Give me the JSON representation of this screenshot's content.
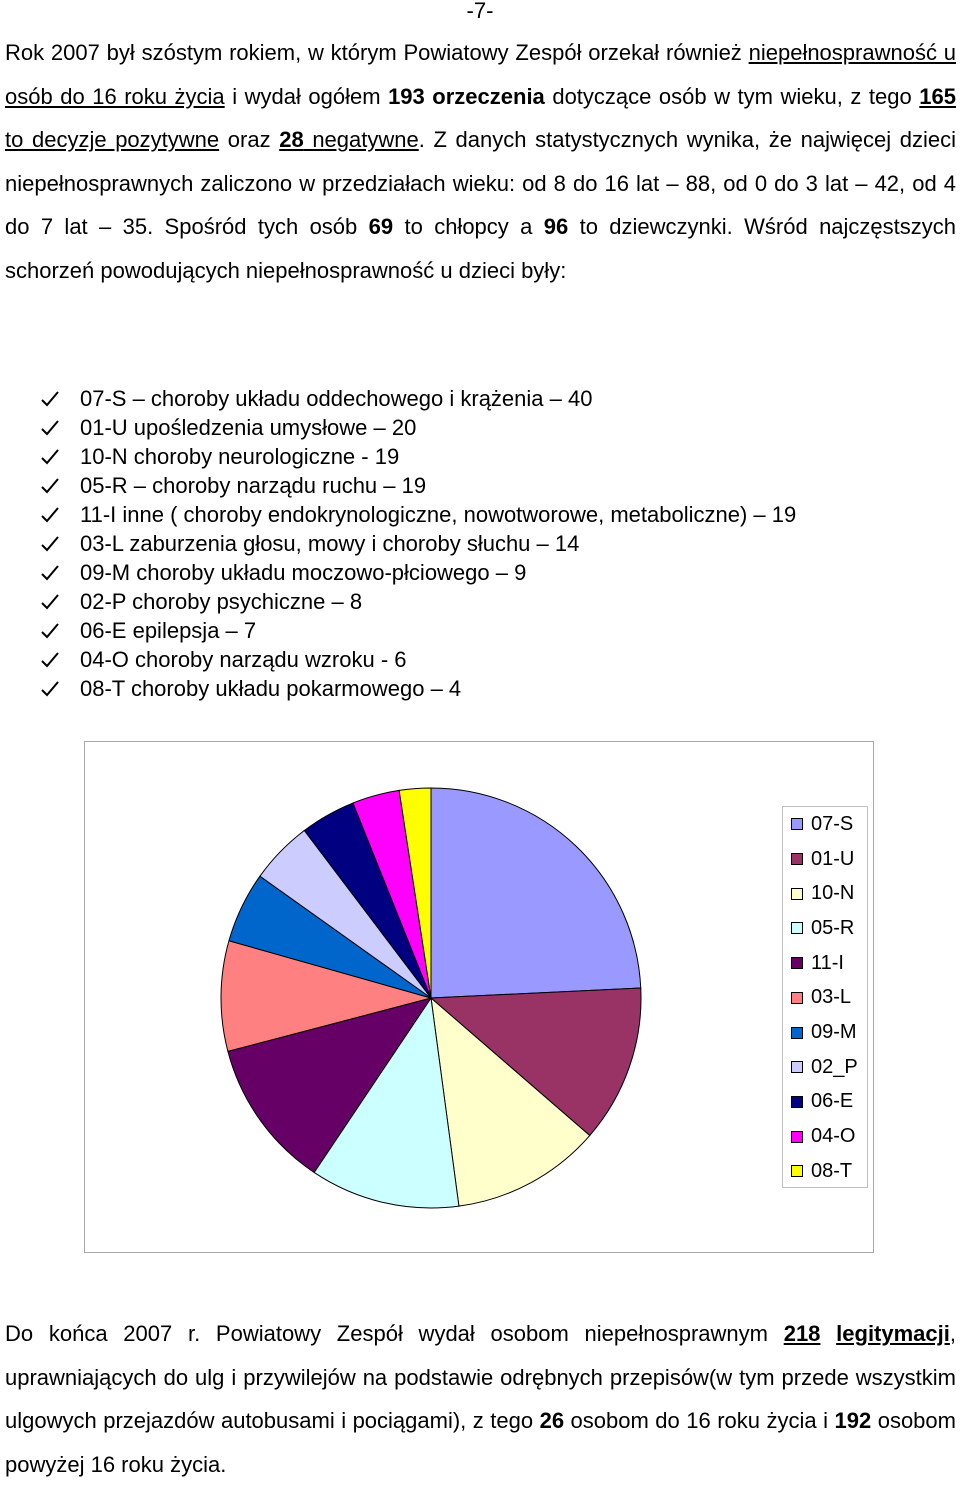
{
  "page_number": "-7-",
  "intro": {
    "s1": "Rok 2007 był szóstym rokiem, w którym Powiatowy Zespół orzekał również ",
    "s2": "niepełnosprawność u osób do 16 roku życia",
    "s3": " i wydał ogółem ",
    "n_total": "193",
    "s4": " orzeczenia",
    "s5": " dotyczące osób w tym wieku, z tego ",
    "n_pos": "165",
    "s6": " to decyzje pozytywne",
    "s7": " oraz ",
    "n_neg": "28",
    "s8": " negatywne",
    "s9": ". Z danych statystycznych wynika, że najwięcej dzieci niepełnosprawnych zaliczono w przedziałach wieku: od 8 do 16 lat – 88, od 0 do 3 lat – 42, od 4 do 7 lat – 35. Spośród tych osób ",
    "n_boys": "69",
    "s10": " to chłopcy a ",
    "n_girls": "96",
    "s11": " to dziewczynki. Wśród najczęstszych schorzeń powodujących niepełnosprawność u dzieci były:"
  },
  "conditions": [
    "07-S – choroby układu oddechowego i krążenia – 40",
    "01-U upośledzenia umysłowe – 20",
    "10-N choroby neurologiczne - 19",
    "05-R – choroby narządu ruchu – 19",
    "11-I inne ( choroby endokrynologiczne, nowotworowe, metaboliczne) – 19",
    "03-L zaburzenia głosu, mowy i choroby słuchu – 14",
    "09-M choroby układu moczowo-płciowego – 9",
    "02-P choroby psychiczne – 8",
    "06-E epilepsja – 7",
    "04-O choroby narządu wzroku - 6",
    "08-T choroby układu pokarmowego – 4"
  ],
  "chart_data": {
    "type": "pie",
    "categories": [
      "07-S",
      "01-U",
      "10-N",
      "05-R",
      "11-I",
      "03-L",
      "09-M",
      "02_P",
      "06-E",
      "04-O",
      "08-T"
    ],
    "values": [
      40,
      20,
      19,
      19,
      19,
      14,
      9,
      8,
      7,
      6,
      4
    ],
    "colors": [
      "#9999ff",
      "#993366",
      "#ffffcc",
      "#ccffff",
      "#660066",
      "#ff8080",
      "#0066cc",
      "#ccccff",
      "#000080",
      "#ff00ff",
      "#ffff00"
    ],
    "legend_position": "right"
  },
  "closing": {
    "s1": "Do końca 2007 r. Powiatowy Zespół wydał osobom niepełnosprawnym ",
    "n_leg": "218",
    "s2": " ",
    "leg_word": "legitymacji",
    "s3": ", uprawniających do ulg i przywilejów na podstawie odrębnych przepisów(w tym przede wszystkim ulgowych przejazdów autobusami i pociągami), z tego ",
    "n_u16": "26",
    "s4": " osobom do 16 roku życia i ",
    "n_o16": "192",
    "s5": " osobom powyżej 16 roku życia."
  }
}
